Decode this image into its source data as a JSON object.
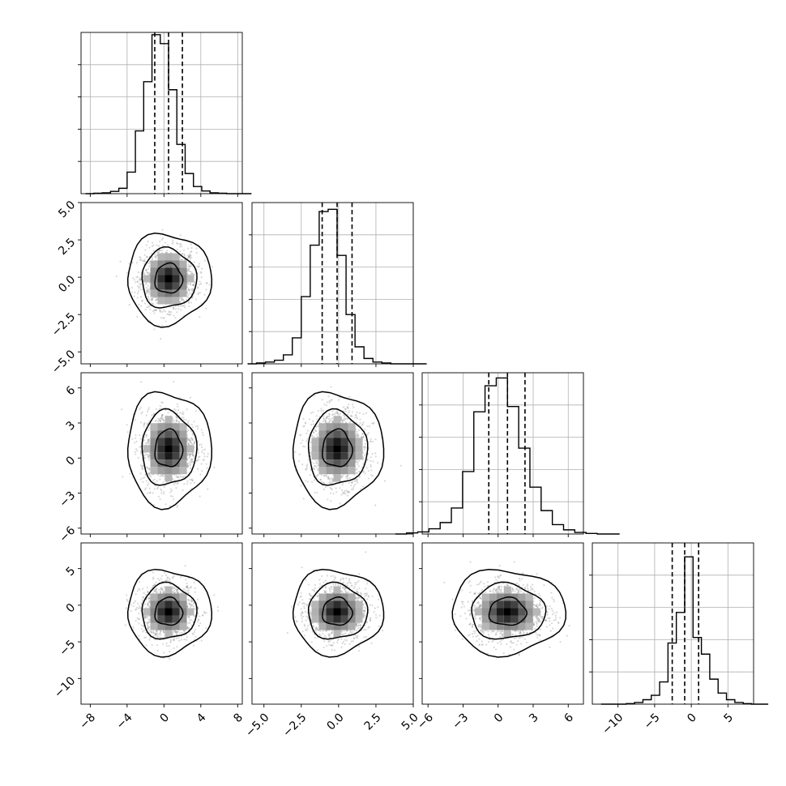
{
  "chart_data": {
    "type": "corner",
    "n_params": 4,
    "params": [
      {
        "index": 0,
        "center": 0.5,
        "sigma": 1.5,
        "range": [
          -9,
          8.5
        ],
        "ticks": [
          -8,
          -4,
          0,
          4,
          8
        ],
        "tick_labels": [
          "−8",
          "−4",
          "0",
          "4",
          "8"
        ],
        "quantiles": [
          -1.0,
          0.5,
          2.0
        ]
      },
      {
        "index": 1,
        "center": -0.1,
        "sigma": 1.0,
        "range": [
          -5.8,
          5.0
        ],
        "ticks": [
          -5.0,
          -2.5,
          0.0,
          2.5,
          5.0
        ],
        "tick_labels": [
          "−5.0",
          "−2.5",
          "0.0",
          "2.5",
          "5.0"
        ],
        "quantiles": [
          -1.1,
          -0.1,
          0.9
        ]
      },
      {
        "index": 2,
        "center": 0.8,
        "sigma": 1.6,
        "range": [
          -6.5,
          7.3
        ],
        "ticks": [
          -6,
          -3,
          0,
          3,
          6
        ],
        "tick_labels": [
          "−6",
          "−3",
          "0",
          "3",
          "6"
        ],
        "quantiles": [
          -0.8,
          0.8,
          2.3
        ]
      },
      {
        "index": 3,
        "center": -0.9,
        "sigma": 1.9,
        "range": [
          -13.5,
          8.5
        ],
        "ticks": [
          -10,
          -5,
          0,
          5
        ],
        "tick_labels": [
          "−10",
          "−5",
          "0",
          "5"
        ],
        "quantiles": [
          -2.6,
          -0.9,
          1.0
        ]
      }
    ],
    "histograms": [
      {
        "param": 0,
        "bins": 20,
        "counts": [
          0,
          1,
          2,
          5,
          12,
          48,
          140,
          250,
          355,
          335,
          232,
          110,
          45,
          16,
          6,
          2,
          1,
          0,
          0,
          0
        ],
        "ylim": [
          0,
          360
        ]
      },
      {
        "param": 1,
        "bins": 20,
        "counts": [
          0,
          2,
          4,
          8,
          20,
          58,
          150,
          265,
          340,
          345,
          242,
          110,
          38,
          12,
          4,
          2,
          0,
          0,
          0,
          0
        ],
        "ylim": [
          0,
          360
        ]
      },
      {
        "param": 2,
        "bins": 20,
        "counts": [
          0,
          2,
          4,
          10,
          22,
          50,
          120,
          235,
          285,
          300,
          245,
          165,
          90,
          45,
          18,
          8,
          3,
          1,
          0,
          0
        ],
        "ylim": [
          0,
          310
        ]
      },
      {
        "param": 3,
        "bins": 20,
        "counts": [
          0,
          0,
          0,
          1,
          3,
          8,
          16,
          40,
          110,
          165,
          265,
          120,
          90,
          45,
          20,
          8,
          3,
          1,
          0,
          0
        ],
        "ylim": [
          0,
          290
        ]
      }
    ],
    "pairs": [
      {
        "x_param": 0,
        "y_param": 1,
        "contour_levels": [
          0.39,
          0.86,
          0.99
        ]
      },
      {
        "x_param": 0,
        "y_param": 2,
        "contour_levels": [
          0.39,
          0.86,
          0.99
        ]
      },
      {
        "x_param": 1,
        "y_param": 2,
        "contour_levels": [
          0.39,
          0.86,
          0.99
        ]
      },
      {
        "x_param": 0,
        "y_param": 3,
        "contour_levels": [
          0.39,
          0.86,
          0.99
        ]
      },
      {
        "x_param": 1,
        "y_param": 3,
        "contour_levels": [
          0.39,
          0.86,
          0.99
        ]
      },
      {
        "x_param": 2,
        "y_param": 3,
        "contour_levels": [
          0.39,
          0.86,
          0.99
        ]
      }
    ],
    "grid": true,
    "title": "",
    "xlabel": "",
    "ylabel": "",
    "colors": {
      "line": "#000000",
      "points": "#8a8a8a",
      "grid": "#b0b0b0",
      "density_low": "#c8c8c8",
      "density_high": "#000000"
    }
  }
}
